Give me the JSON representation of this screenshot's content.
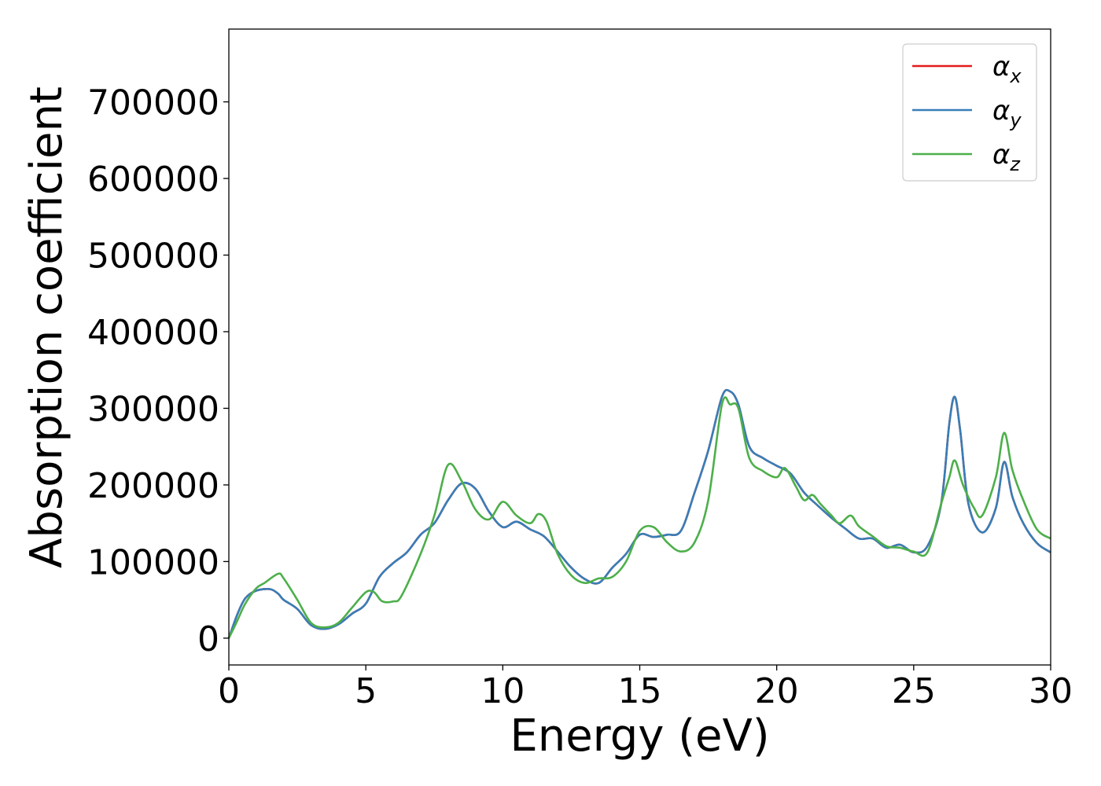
{
  "chart_data": {
    "type": "line",
    "xlabel": "Energy (eV)",
    "ylabel": "Absorption coefficient",
    "xlim": [
      0,
      30
    ],
    "ylim": [
      -35000,
      795000
    ],
    "xticks": [
      0,
      5,
      10,
      15,
      20,
      25,
      30
    ],
    "xtick_labels": [
      "0",
      "5",
      "10",
      "15",
      "20",
      "25",
      "30"
    ],
    "yticks": [
      0,
      100000,
      200000,
      300000,
      400000,
      500000,
      600000,
      700000
    ],
    "ytick_labels": [
      "0",
      "100000",
      "200000",
      "300000",
      "400000",
      "500000",
      "600000",
      "700000"
    ],
    "grid": false,
    "legend_position": "top-right",
    "series": [
      {
        "name": "α_x",
        "legend_symbol": "α",
        "legend_sub": "x",
        "color": "#e41a1c",
        "x": [
          0,
          0.3,
          0.6,
          1.0,
          1.5,
          1.8,
          2.0,
          2.5,
          3.0,
          3.5,
          4.0,
          4.5,
          5.0,
          5.5,
          6.0,
          6.5,
          7.0,
          7.5,
          8.0,
          8.5,
          9.0,
          9.5,
          10.0,
          10.5,
          11.0,
          11.5,
          12.0,
          12.5,
          13.0,
          13.5,
          14.0,
          14.5,
          15.0,
          15.5,
          16.0,
          16.5,
          17.0,
          17.5,
          18.0,
          18.3,
          18.6,
          19.0,
          19.5,
          20.0,
          20.5,
          21.0,
          21.5,
          22.0,
          22.5,
          23.0,
          23.5,
          24.0,
          24.5,
          25.0,
          25.5,
          26.0,
          26.3,
          26.5,
          26.7,
          27.0,
          27.5,
          28.0,
          28.3,
          28.6,
          29.0,
          29.5,
          30.0
        ],
        "values": [
          0,
          30000,
          52000,
          62000,
          64000,
          58000,
          50000,
          38000,
          17000,
          12000,
          18000,
          32000,
          45000,
          80000,
          98000,
          112000,
          135000,
          150000,
          180000,
          202000,
          195000,
          165000,
          145000,
          152000,
          142000,
          133000,
          113000,
          92000,
          77000,
          72000,
          92000,
          110000,
          135000,
          132000,
          135000,
          140000,
          190000,
          245000,
          315000,
          322000,
          305000,
          250000,
          235000,
          225000,
          215000,
          190000,
          173000,
          157000,
          143000,
          130000,
          130000,
          118000,
          122000,
          112000,
          120000,
          175000,
          280000,
          315000,
          270000,
          175000,
          138000,
          170000,
          230000,
          185000,
          150000,
          124000,
          112000
        ]
      },
      {
        "name": "α_y",
        "legend_symbol": "α",
        "legend_sub": "y",
        "color": "#377eb8",
        "x": [
          0,
          0.3,
          0.6,
          1.0,
          1.5,
          1.8,
          2.0,
          2.5,
          3.0,
          3.5,
          4.0,
          4.5,
          5.0,
          5.5,
          6.0,
          6.5,
          7.0,
          7.5,
          8.0,
          8.5,
          9.0,
          9.5,
          10.0,
          10.5,
          11.0,
          11.5,
          12.0,
          12.5,
          13.0,
          13.5,
          14.0,
          14.5,
          15.0,
          15.5,
          16.0,
          16.5,
          17.0,
          17.5,
          18.0,
          18.3,
          18.6,
          19.0,
          19.5,
          20.0,
          20.5,
          21.0,
          21.5,
          22.0,
          22.5,
          23.0,
          23.5,
          24.0,
          24.5,
          25.0,
          25.5,
          26.0,
          26.3,
          26.5,
          26.7,
          27.0,
          27.5,
          28.0,
          28.3,
          28.6,
          29.0,
          29.5,
          30.0
        ],
        "values": [
          0,
          30000,
          52000,
          62000,
          64000,
          58000,
          50000,
          38000,
          17000,
          12000,
          18000,
          32000,
          45000,
          80000,
          98000,
          112000,
          135000,
          150000,
          180000,
          202000,
          195000,
          165000,
          145000,
          152000,
          142000,
          133000,
          113000,
          92000,
          77000,
          72000,
          92000,
          110000,
          135000,
          132000,
          135000,
          140000,
          190000,
          245000,
          315000,
          322000,
          305000,
          250000,
          235000,
          225000,
          215000,
          190000,
          173000,
          157000,
          143000,
          130000,
          130000,
          118000,
          122000,
          112000,
          120000,
          175000,
          280000,
          315000,
          270000,
          175000,
          138000,
          170000,
          230000,
          185000,
          150000,
          124000,
          112000
        ]
      },
      {
        "name": "α_z",
        "legend_symbol": "α",
        "legend_sub": "z",
        "color": "#4daf4a",
        "x": [
          0,
          0.3,
          0.6,
          1.0,
          1.3,
          1.8,
          2.0,
          2.5,
          3.0,
          3.5,
          4.0,
          4.5,
          5.0,
          5.3,
          5.6,
          6.0,
          6.3,
          7.0,
          7.5,
          8.0,
          8.5,
          9.0,
          9.5,
          10.0,
          10.5,
          11.0,
          11.3,
          11.6,
          12.0,
          12.5,
          13.0,
          13.5,
          14.0,
          14.5,
          15.0,
          15.5,
          16.0,
          16.5,
          17.0,
          17.5,
          18.0,
          18.3,
          18.6,
          19.0,
          19.5,
          20.0,
          20.3,
          20.7,
          21.0,
          21.3,
          21.6,
          22.0,
          22.3,
          22.7,
          23.0,
          23.5,
          24.0,
          24.5,
          25.0,
          25.5,
          26.0,
          26.3,
          26.5,
          26.8,
          27.2,
          27.5,
          28.0,
          28.3,
          28.6,
          29.0,
          29.5,
          30.0
        ],
        "values": [
          0,
          22000,
          45000,
          65000,
          72000,
          84000,
          78000,
          50000,
          20000,
          14000,
          20000,
          40000,
          60000,
          60000,
          48000,
          48000,
          55000,
          110000,
          160000,
          226000,
          205000,
          168000,
          155000,
          178000,
          160000,
          150000,
          162000,
          152000,
          110000,
          82000,
          72000,
          78000,
          80000,
          100000,
          140000,
          145000,
          125000,
          113000,
          125000,
          180000,
          305000,
          305000,
          300000,
          235000,
          218000,
          210000,
          222000,
          198000,
          180000,
          187000,
          175000,
          160000,
          150000,
          160000,
          146000,
          133000,
          120000,
          118000,
          113000,
          112000,
          175000,
          210000,
          232000,
          200000,
          170000,
          160000,
          210000,
          268000,
          220000,
          180000,
          142000,
          130000
        ]
      }
    ]
  }
}
